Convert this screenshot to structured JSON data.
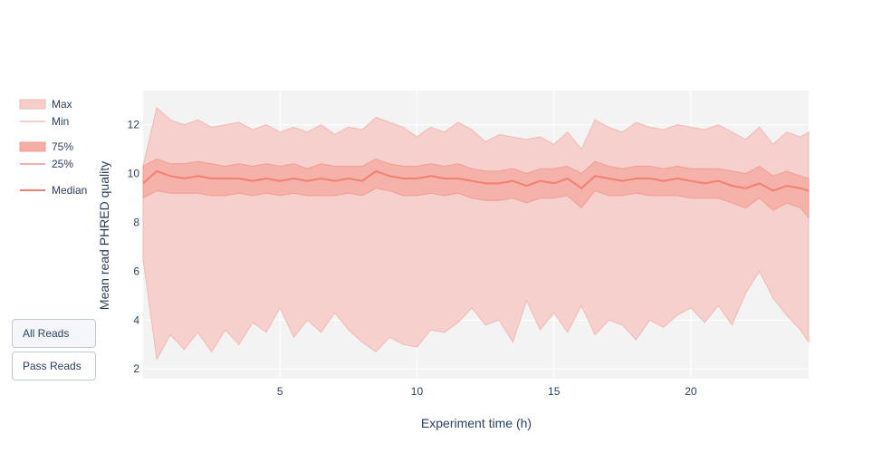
{
  "buttons": [
    {
      "label": "All Reads",
      "active": true
    },
    {
      "label": "Pass Reads",
      "active": false
    }
  ],
  "colors": {
    "plot_bg": "#f3f3f3",
    "outer_fill": "#f6cdc9",
    "inner_fill": "#f5aea6",
    "median": "#f47f70",
    "grid": "#ffffff",
    "text": "#2a3f5f"
  },
  "chart_data": {
    "type": "area",
    "title": "",
    "xlabel": "Experiment time (h)",
    "ylabel": "Mean read PHRED quality",
    "xlim": [
      0,
      24.3
    ],
    "ylim": [
      1.6,
      13.4
    ],
    "xticks": [
      5,
      10,
      15,
      20
    ],
    "yticks": [
      2,
      4,
      6,
      8,
      10,
      12
    ],
    "grid": true,
    "legend_position": "left",
    "legend": [
      "Max",
      "Min",
      "75%",
      "25%",
      "Median"
    ],
    "x": [
      0.0,
      0.5,
      1.0,
      1.5,
      2.0,
      2.5,
      3.0,
      3.5,
      4.0,
      4.5,
      5.0,
      5.5,
      6.0,
      6.5,
      7.0,
      7.5,
      8.0,
      8.5,
      9.0,
      9.5,
      10.0,
      10.5,
      11.0,
      11.5,
      12.0,
      12.5,
      13.0,
      13.5,
      14.0,
      14.5,
      15.0,
      15.5,
      16.0,
      16.5,
      17.0,
      17.5,
      18.0,
      18.5,
      19.0,
      19.5,
      20.0,
      20.5,
      21.0,
      21.5,
      22.0,
      22.5,
      23.0,
      23.5,
      24.0,
      24.3
    ],
    "series": [
      {
        "name": "Max",
        "values": [
          10.3,
          12.7,
          12.2,
          12.0,
          12.2,
          11.9,
          12.0,
          12.1,
          11.8,
          12.0,
          11.7,
          11.9,
          11.7,
          12.0,
          11.6,
          11.9,
          11.8,
          12.3,
          12.1,
          11.9,
          11.5,
          11.9,
          11.7,
          12.1,
          11.8,
          11.3,
          11.6,
          11.5,
          11.4,
          11.5,
          11.2,
          11.7,
          11.0,
          12.2,
          11.9,
          11.7,
          12.1,
          11.9,
          11.8,
          12.0,
          11.9,
          11.8,
          12.0,
          11.7,
          11.4,
          11.9,
          11.2,
          11.7,
          11.5,
          11.7
        ]
      },
      {
        "name": "75%",
        "values": [
          10.3,
          10.6,
          10.4,
          10.4,
          10.5,
          10.4,
          10.3,
          10.4,
          10.3,
          10.4,
          10.3,
          10.4,
          10.2,
          10.4,
          10.3,
          10.3,
          10.3,
          10.6,
          10.4,
          10.3,
          10.3,
          10.4,
          10.3,
          10.4,
          10.2,
          10.1,
          10.1,
          10.2,
          10.0,
          10.2,
          10.2,
          10.3,
          10.0,
          10.5,
          10.3,
          10.2,
          10.3,
          10.3,
          10.2,
          10.3,
          10.2,
          10.2,
          10.2,
          10.1,
          10.0,
          10.3,
          9.9,
          10.1,
          9.9,
          9.8
        ]
      },
      {
        "name": "Median",
        "values": [
          9.6,
          10.1,
          9.9,
          9.8,
          9.9,
          9.8,
          9.8,
          9.8,
          9.7,
          9.8,
          9.7,
          9.8,
          9.7,
          9.8,
          9.7,
          9.8,
          9.7,
          10.1,
          9.9,
          9.8,
          9.8,
          9.9,
          9.8,
          9.8,
          9.7,
          9.6,
          9.6,
          9.7,
          9.5,
          9.7,
          9.6,
          9.8,
          9.4,
          9.9,
          9.8,
          9.7,
          9.8,
          9.8,
          9.7,
          9.8,
          9.7,
          9.6,
          9.7,
          9.5,
          9.4,
          9.6,
          9.3,
          9.5,
          9.4,
          9.3
        ]
      },
      {
        "name": "25%",
        "values": [
          9.0,
          9.3,
          9.2,
          9.2,
          9.2,
          9.1,
          9.1,
          9.2,
          9.1,
          9.2,
          9.1,
          9.2,
          9.1,
          9.1,
          9.1,
          9.2,
          9.1,
          9.4,
          9.3,
          9.1,
          9.1,
          9.2,
          9.1,
          9.2,
          9.0,
          8.9,
          8.9,
          9.0,
          8.8,
          9.0,
          9.0,
          9.1,
          8.6,
          9.3,
          9.1,
          9.1,
          9.2,
          9.1,
          9.1,
          9.1,
          9.0,
          9.0,
          9.0,
          8.8,
          8.6,
          9.0,
          8.5,
          8.8,
          8.6,
          8.2
        ]
      },
      {
        "name": "Min",
        "values": [
          6.5,
          2.4,
          3.4,
          2.8,
          3.5,
          2.7,
          3.6,
          3.0,
          3.9,
          3.5,
          4.5,
          3.3,
          4.0,
          3.5,
          4.3,
          3.6,
          3.1,
          2.7,
          3.3,
          3.0,
          2.9,
          3.6,
          3.5,
          3.9,
          4.5,
          3.8,
          4.0,
          3.1,
          4.8,
          3.6,
          4.3,
          3.5,
          4.6,
          3.4,
          4.0,
          3.8,
          3.2,
          4.0,
          3.7,
          4.2,
          4.5,
          3.9,
          4.6,
          3.8,
          5.1,
          6.0,
          4.9,
          4.2,
          3.6,
          3.1
        ]
      }
    ]
  }
}
